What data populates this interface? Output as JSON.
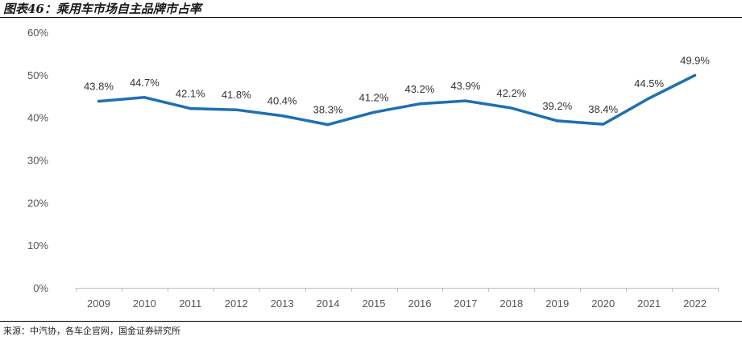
{
  "title": "图表46：乘用车市场自主品牌市占率",
  "source": "来源：中汽协，各车企官网，国金证券研究所",
  "chart_data": {
    "type": "line",
    "title": "乘用车市场自主品牌市占率",
    "categories": [
      "2009",
      "2010",
      "2011",
      "2012",
      "2013",
      "2014",
      "2015",
      "2016",
      "2017",
      "2018",
      "2019",
      "2020",
      "2021",
      "2022"
    ],
    "values": [
      43.8,
      44.7,
      42.1,
      41.8,
      40.4,
      38.3,
      41.2,
      43.2,
      43.9,
      42.2,
      39.2,
      38.4,
      44.5,
      49.9
    ],
    "data_labels": [
      "43.8%",
      "44.7%",
      "42.1%",
      "41.8%",
      "40.4%",
      "38.3%",
      "41.2%",
      "43.2%",
      "43.9%",
      "42.2%",
      "39.2%",
      "38.4%",
      "44.5%",
      "49.9%"
    ],
    "y_ticks": [
      "0%",
      "10%",
      "20%",
      "30%",
      "40%",
      "50%",
      "60%"
    ],
    "ylim": [
      0,
      60
    ],
    "xlabel": "",
    "ylabel": "",
    "grid": false,
    "line_color": "#1f6fb2"
  }
}
